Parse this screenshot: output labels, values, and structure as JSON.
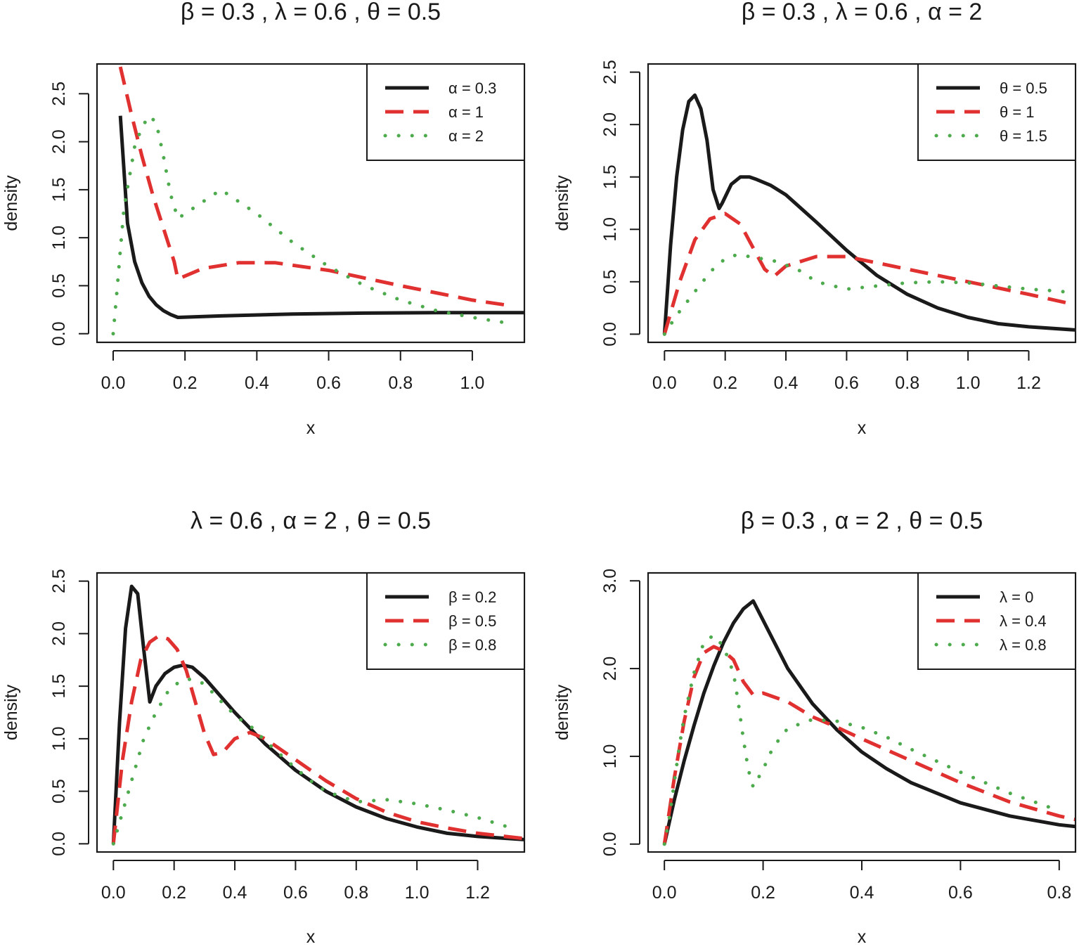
{
  "chart_data": [
    {
      "type": "line",
      "title": "β = 0.3 , λ = 0.6 , θ = 0.5",
      "xlabel": "x",
      "ylabel": "density",
      "xlim": [
        -0.045,
        1.145
      ],
      "ylim": [
        -0.09,
        2.81
      ],
      "xticks": [
        "0.0",
        "0.2",
        "0.4",
        "0.6",
        "0.8",
        "1.0"
      ],
      "yticks": [
        "0.0",
        "0.5",
        "1.0",
        "1.5",
        "2.0",
        "2.5"
      ],
      "legend_position": "top-right",
      "grid": false,
      "series": [
        {
          "name": "α = 0.3",
          "style": "solid",
          "color": "#1a1a1a",
          "x": [
            0.02,
            0.04,
            0.06,
            0.08,
            0.1,
            0.12,
            0.14,
            0.16,
            0.18,
            0.3,
            0.5,
            0.7,
            0.9,
            1.145
          ],
          "y": [
            2.27,
            1.15,
            0.75,
            0.53,
            0.39,
            0.3,
            0.24,
            0.2,
            0.17,
            0.185,
            0.205,
            0.215,
            0.22,
            0.22
          ]
        },
        {
          "name": "α = 1",
          "style": "dashed",
          "color": "#e03030",
          "x": [
            0.02,
            0.05,
            0.08,
            0.11,
            0.14,
            0.17,
            0.18,
            0.25,
            0.35,
            0.45,
            0.6,
            0.8,
            1.0,
            1.11
          ],
          "y": [
            2.78,
            2.3,
            1.85,
            1.45,
            1.1,
            0.75,
            0.57,
            0.68,
            0.74,
            0.74,
            0.66,
            0.5,
            0.35,
            0.29
          ]
        },
        {
          "name": "α = 2",
          "style": "dotted",
          "color": "#4daa4d",
          "x": [
            0.0,
            0.01,
            0.02,
            0.03,
            0.04,
            0.05,
            0.06,
            0.08,
            0.1,
            0.12,
            0.14,
            0.16,
            0.18,
            0.2,
            0.3,
            0.4,
            0.5,
            0.6,
            0.7,
            0.8,
            0.9,
            1.0,
            1.1
          ],
          "y": [
            0.0,
            0.42,
            0.87,
            1.3,
            1.52,
            1.73,
            1.95,
            2.15,
            2.27,
            2.2,
            1.85,
            1.45,
            1.2,
            1.25,
            1.5,
            1.25,
            0.95,
            0.7,
            0.5,
            0.35,
            0.24,
            0.17,
            0.11
          ]
        }
      ]
    },
    {
      "type": "line",
      "title": "β = 0.3 , λ = 0.6 , α = 2",
      "xlabel": "x",
      "ylabel": "density",
      "xlim": [
        -0.054,
        1.354
      ],
      "ylim": [
        -0.078,
        2.578
      ],
      "xticks": [
        "0.0",
        "0.2",
        "0.4",
        "0.6",
        "0.8",
        "1.0",
        "1.2"
      ],
      "yticks": [
        "0.0",
        "0.5",
        "1.0",
        "1.5",
        "2.0",
        "2.5"
      ],
      "legend_position": "top-right",
      "grid": false,
      "series": [
        {
          "name": "θ = 0.5",
          "style": "solid",
          "color": "#1a1a1a",
          "x": [
            0.0,
            0.02,
            0.04,
            0.06,
            0.08,
            0.1,
            0.12,
            0.14,
            0.16,
            0.18,
            0.19,
            0.22,
            0.25,
            0.28,
            0.3,
            0.35,
            0.4,
            0.5,
            0.6,
            0.7,
            0.8,
            0.9,
            1.0,
            1.1,
            1.2,
            1.354
          ],
          "y": [
            0.0,
            0.85,
            1.5,
            1.95,
            2.22,
            2.28,
            2.15,
            1.85,
            1.38,
            1.2,
            1.25,
            1.43,
            1.5,
            1.5,
            1.48,
            1.42,
            1.33,
            1.07,
            0.8,
            0.56,
            0.38,
            0.25,
            0.16,
            0.1,
            0.07,
            0.04
          ]
        },
        {
          "name": "θ = 1",
          "style": "dashed",
          "color": "#e03030",
          "x": [
            0.0,
            0.05,
            0.1,
            0.15,
            0.2,
            0.25,
            0.3,
            0.33,
            0.36,
            0.4,
            0.5,
            0.6,
            0.8,
            1.0,
            1.2,
            1.354
          ],
          "y": [
            0.0,
            0.5,
            0.9,
            1.1,
            1.15,
            1.05,
            0.78,
            0.62,
            0.55,
            0.65,
            0.74,
            0.74,
            0.62,
            0.5,
            0.38,
            0.28
          ]
        },
        {
          "name": "θ = 1.5",
          "style": "dotted",
          "color": "#4daa4d",
          "x": [
            0.0,
            0.04,
            0.08,
            0.12,
            0.16,
            0.2,
            0.24,
            0.28,
            0.32,
            0.36,
            0.4,
            0.45,
            0.5,
            0.6,
            0.7,
            0.8,
            0.9,
            1.0,
            1.1,
            1.2,
            1.3,
            1.354
          ],
          "y": [
            0.0,
            0.18,
            0.33,
            0.48,
            0.62,
            0.72,
            0.76,
            0.74,
            0.72,
            0.7,
            0.66,
            0.6,
            0.5,
            0.43,
            0.46,
            0.49,
            0.5,
            0.49,
            0.46,
            0.43,
            0.41,
            0.39
          ]
        }
      ]
    },
    {
      "type": "line",
      "title": "λ = 0.6 , α = 2 , θ = 0.5",
      "xlabel": "x",
      "ylabel": "density",
      "xlim": [
        -0.054,
        1.354
      ],
      "ylim": [
        -0.078,
        2.578
      ],
      "xticks": [
        "0.0",
        "0.2",
        "0.4",
        "0.6",
        "0.8",
        "1.0",
        "1.2"
      ],
      "yticks": [
        "0.0",
        "0.5",
        "1.0",
        "1.5",
        "2.0",
        "2.5"
      ],
      "legend_position": "top-right",
      "grid": false,
      "series": [
        {
          "name": "β = 0.2",
          "style": "solid",
          "color": "#1a1a1a",
          "x": [
            0.0,
            0.02,
            0.04,
            0.06,
            0.08,
            0.1,
            0.12,
            0.14,
            0.17,
            0.2,
            0.23,
            0.26,
            0.3,
            0.4,
            0.5,
            0.6,
            0.7,
            0.8,
            0.9,
            1.0,
            1.1,
            1.2,
            1.354
          ],
          "y": [
            0.0,
            1.15,
            2.05,
            2.45,
            2.38,
            1.85,
            1.35,
            1.5,
            1.62,
            1.68,
            1.7,
            1.68,
            1.58,
            1.25,
            0.95,
            0.7,
            0.5,
            0.35,
            0.24,
            0.16,
            0.1,
            0.07,
            0.04
          ]
        },
        {
          "name": "β = 0.5",
          "style": "dashed",
          "color": "#e03030",
          "x": [
            0.0,
            0.03,
            0.06,
            0.09,
            0.12,
            0.15,
            0.18,
            0.21,
            0.24,
            0.27,
            0.3,
            0.33,
            0.36,
            0.4,
            0.45,
            0.5,
            0.6,
            0.7,
            0.8,
            0.9,
            1.0,
            1.1,
            1.2,
            1.354
          ],
          "y": [
            0.0,
            0.8,
            1.35,
            1.75,
            1.92,
            1.98,
            1.95,
            1.85,
            1.65,
            1.35,
            1.05,
            0.85,
            0.87,
            1.0,
            1.06,
            1.0,
            0.8,
            0.6,
            0.43,
            0.3,
            0.21,
            0.15,
            0.1,
            0.05
          ]
        },
        {
          "name": "β = 0.8",
          "style": "dotted",
          "color": "#4daa4d",
          "x": [
            0.0,
            0.02,
            0.04,
            0.06,
            0.08,
            0.1,
            0.14,
            0.18,
            0.22,
            0.26,
            0.3,
            0.34,
            0.38,
            0.42,
            0.46,
            0.5,
            0.55,
            0.6,
            0.65,
            0.7,
            0.8,
            0.9,
            1.0,
            1.1,
            1.2,
            1.3
          ],
          "y": [
            0.0,
            0.2,
            0.4,
            0.6,
            0.8,
            1.0,
            1.25,
            1.45,
            1.55,
            1.57,
            1.52,
            1.4,
            1.28,
            1.18,
            1.1,
            0.98,
            0.85,
            0.72,
            0.6,
            0.5,
            0.4,
            0.42,
            0.38,
            0.32,
            0.25,
            0.16
          ]
        }
      ]
    },
    {
      "type": "line",
      "title": "β = 0.3 , α = 2 , θ = 0.5",
      "xlabel": "x",
      "ylabel": "density",
      "xlim": [
        -0.033,
        0.833
      ],
      "ylim": [
        -0.09,
        3.09
      ],
      "xticks": [
        "0.0",
        "0.2",
        "0.4",
        "0.6",
        "0.8"
      ],
      "yticks": [
        "0.0",
        "1.0",
        "2.0",
        "3.0"
      ],
      "legend_position": "top-right",
      "grid": false,
      "series": [
        {
          "name": "λ = 0",
          "style": "solid",
          "color": "#1a1a1a",
          "x": [
            0.0,
            0.02,
            0.04,
            0.06,
            0.08,
            0.1,
            0.12,
            0.14,
            0.16,
            0.18,
            0.2,
            0.25,
            0.3,
            0.35,
            0.4,
            0.45,
            0.5,
            0.6,
            0.7,
            0.8,
            0.833
          ],
          "y": [
            0.0,
            0.5,
            0.95,
            1.35,
            1.72,
            2.03,
            2.3,
            2.52,
            2.68,
            2.77,
            2.55,
            2.0,
            1.6,
            1.3,
            1.05,
            0.86,
            0.7,
            0.47,
            0.32,
            0.22,
            0.2
          ]
        },
        {
          "name": "λ = 0.4",
          "style": "dashed",
          "color": "#e03030",
          "x": [
            0.0,
            0.02,
            0.04,
            0.06,
            0.08,
            0.1,
            0.12,
            0.14,
            0.16,
            0.18,
            0.2,
            0.25,
            0.3,
            0.35,
            0.4,
            0.5,
            0.6,
            0.7,
            0.8,
            0.833
          ],
          "y": [
            0.0,
            0.75,
            1.4,
            1.9,
            2.18,
            2.25,
            2.2,
            2.1,
            1.85,
            1.7,
            1.72,
            1.62,
            1.45,
            1.33,
            1.2,
            0.95,
            0.7,
            0.48,
            0.32,
            0.28
          ]
        },
        {
          "name": "λ = 0.8",
          "style": "dotted",
          "color": "#4daa4d",
          "x": [
            0.0,
            0.01,
            0.02,
            0.03,
            0.04,
            0.06,
            0.08,
            0.1,
            0.12,
            0.14,
            0.15,
            0.16,
            0.17,
            0.18,
            0.2,
            0.22,
            0.25,
            0.3,
            0.35,
            0.4,
            0.45,
            0.5,
            0.55,
            0.6,
            0.65,
            0.7,
            0.75,
            0.8
          ],
          "y": [
            0.0,
            0.3,
            0.7,
            1.1,
            1.45,
            1.95,
            2.3,
            2.38,
            2.25,
            1.95,
            1.6,
            1.2,
            0.85,
            0.65,
            0.85,
            1.1,
            1.32,
            1.42,
            1.4,
            1.33,
            1.22,
            1.08,
            0.95,
            0.82,
            0.7,
            0.58,
            0.48,
            0.38
          ]
        }
      ]
    }
  ]
}
